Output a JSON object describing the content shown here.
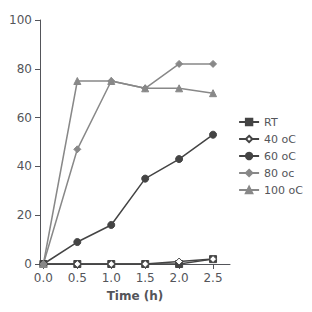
{
  "chart_data": {
    "type": "line",
    "xlabel": "Time (h)",
    "x": [
      0,
      0.5,
      1,
      1.5,
      2,
      2.5
    ],
    "series": [
      {
        "name": "RT",
        "color": "#444444",
        "marker": "square",
        "line_style": "solid",
        "values": [
          0,
          0,
          0,
          0,
          0,
          2
        ]
      },
      {
        "name": "40 oC",
        "color": "#444444",
        "marker": "open_diamond",
        "line_style": "solid",
        "values": [
          0,
          0,
          0,
          0,
          1,
          2
        ]
      },
      {
        "name": "60 oC",
        "color": "#444444",
        "marker": "circle",
        "line_style": "solid",
        "values": [
          0,
          9,
          16,
          35,
          43,
          53
        ]
      },
      {
        "name": "80 oc",
        "color": "#888888",
        "marker": "diamond",
        "line_style": "solid",
        "values": [
          0,
          47,
          75,
          72,
          82,
          82
        ]
      },
      {
        "name": "100 oC",
        "color": "#888888",
        "marker": "triangle",
        "line_style": "solid",
        "values": [
          0,
          75,
          75,
          72,
          72,
          70
        ]
      }
    ],
    "xlim": [
      -0.05,
      2.75
    ],
    "xticks": [
      {
        "value": 0,
        "label": "0.0"
      },
      0.5,
      {
        "value": 1,
        "label": "1.0"
      },
      1.5,
      {
        "value": 2,
        "label": "2.0"
      },
      2.5
    ],
    "ylim": [
      0,
      100
    ],
    "yticks": [
      0,
      20,
      40,
      60,
      80,
      100
    ],
    "grid": false,
    "legend": "right"
  }
}
